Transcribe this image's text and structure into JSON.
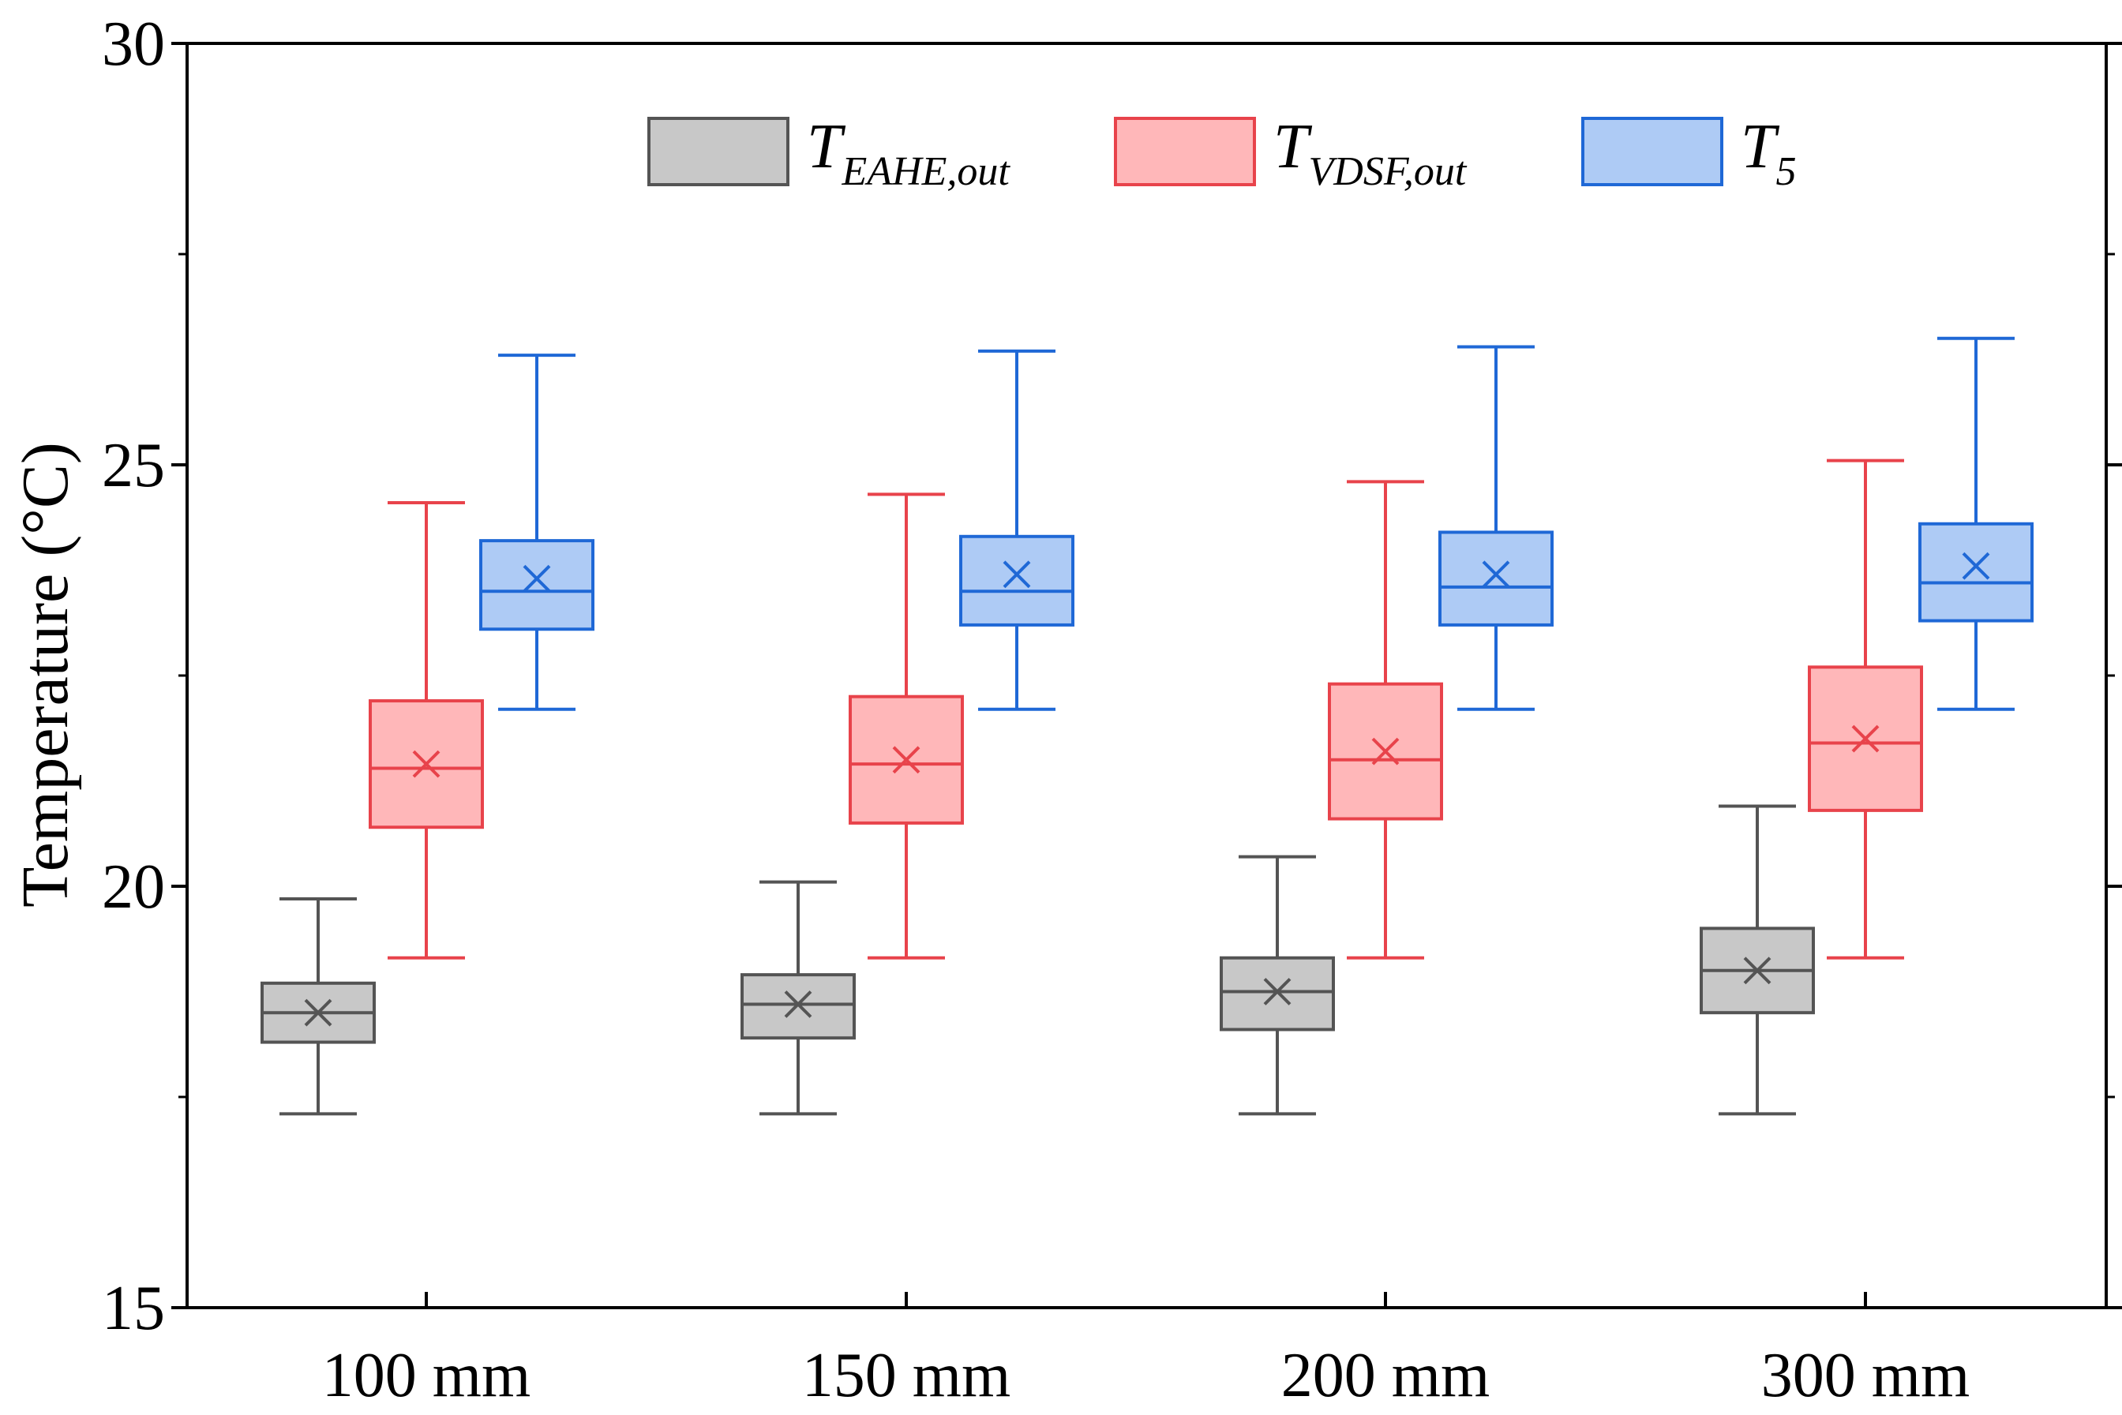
{
  "chart_data": {
    "type": "box",
    "title": "",
    "xlabel": "",
    "ylabel": "Temperature (°C)",
    "ylim": [
      15,
      30
    ],
    "yticks": [
      15,
      20,
      25,
      30
    ],
    "categories": [
      "100 mm",
      "150 mm",
      "200 mm",
      "300 mm"
    ],
    "series": [
      {
        "name": "T_EAHE,out",
        "label_main": "T",
        "label_sub": "EAHE,out",
        "stroke": "#545454",
        "fill": "#c8c8c8",
        "boxes": [
          {
            "min": 17.3,
            "q1": 18.15,
            "median": 18.5,
            "q3": 18.85,
            "max": 19.85,
            "mean": 18.5
          },
          {
            "min": 17.3,
            "q1": 18.2,
            "median": 18.6,
            "q3": 18.95,
            "max": 20.05,
            "mean": 18.6
          },
          {
            "min": 17.3,
            "q1": 18.3,
            "median": 18.75,
            "q3": 19.15,
            "max": 20.35,
            "mean": 18.75
          },
          {
            "min": 17.3,
            "q1": 18.5,
            "median": 19.0,
            "q3": 19.5,
            "max": 20.95,
            "mean": 19.0
          }
        ]
      },
      {
        "name": "T_VDSF,out",
        "label_main": "T",
        "label_sub": "VDSF,out",
        "stroke": "#e8434b",
        "fill": "#ffb7b9",
        "boxes": [
          {
            "min": 19.15,
            "q1": 20.7,
            "median": 21.4,
            "q3": 22.2,
            "max": 24.55,
            "mean": 21.45
          },
          {
            "min": 19.15,
            "q1": 20.75,
            "median": 21.45,
            "q3": 22.25,
            "max": 24.65,
            "mean": 21.5
          },
          {
            "min": 19.15,
            "q1": 20.8,
            "median": 21.5,
            "q3": 22.4,
            "max": 24.8,
            "mean": 21.6
          },
          {
            "min": 19.15,
            "q1": 20.9,
            "median": 21.7,
            "q3": 22.6,
            "max": 25.05,
            "mean": 21.75
          }
        ]
      },
      {
        "name": "T_5",
        "label_main": "T",
        "label_sub": "5",
        "stroke": "#1f68d6",
        "fill": "#aecbf5",
        "boxes": [
          {
            "min": 22.1,
            "q1": 23.05,
            "median": 23.5,
            "q3": 24.1,
            "max": 26.3,
            "mean": 23.65
          },
          {
            "min": 22.1,
            "q1": 23.1,
            "median": 23.5,
            "q3": 24.15,
            "max": 26.35,
            "mean": 23.7
          },
          {
            "min": 22.1,
            "q1": 23.1,
            "median": 23.55,
            "q3": 24.2,
            "max": 26.4,
            "mean": 23.7
          },
          {
            "min": 22.1,
            "q1": 23.15,
            "median": 23.6,
            "q3": 24.3,
            "max": 26.5,
            "mean": 23.8
          }
        ]
      }
    ],
    "legend_position": "top-center"
  }
}
